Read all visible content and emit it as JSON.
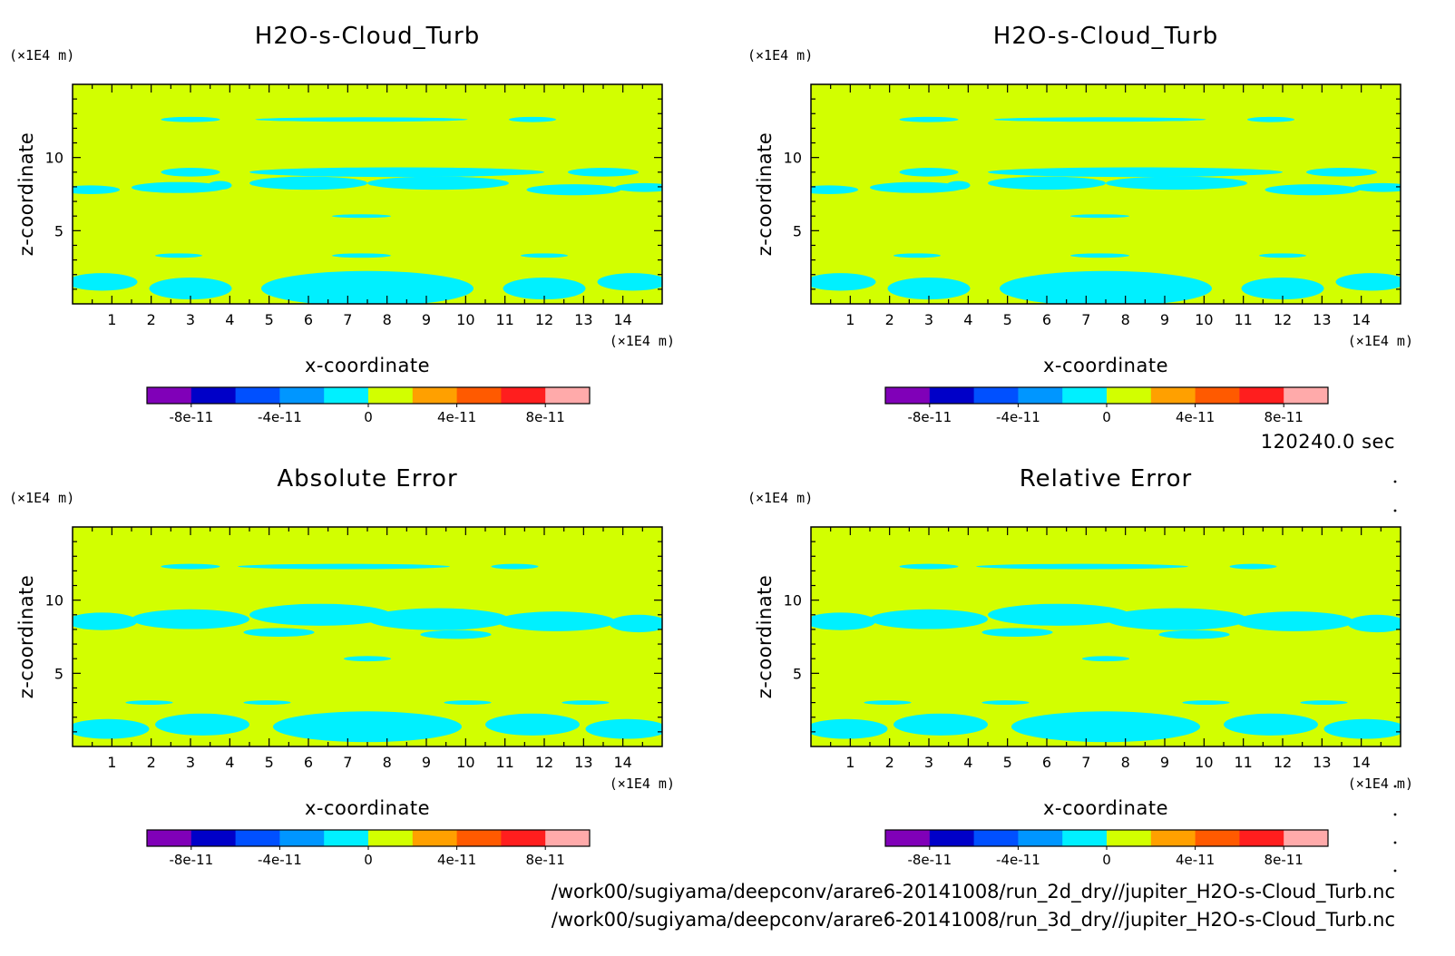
{
  "chart_data": [
    {
      "type": "heatmap",
      "title": "H2O-s-Cloud_Turb",
      "xlabel": "x-coordinate",
      "ylabel": "z-coordinate",
      "x_unit": "(×1E4 m)",
      "y_unit": "(×1E4 m)",
      "xlim": [
        0,
        15
      ],
      "ylim": [
        0,
        15
      ],
      "x_ticks": [
        "1",
        "2",
        "3",
        "4",
        "5",
        "6",
        "7",
        "8",
        "9",
        "10",
        "11",
        "12",
        "13",
        "14"
      ],
      "y_ticks": [
        "5",
        "10"
      ],
      "background_color": "#d2ff00",
      "contour_color": "#00f0ff",
      "colorbar": {
        "levels": [
          "-8e-11",
          "-4e-11",
          "0",
          "4e-11",
          "8e-11"
        ],
        "colors": [
          "#8000b8",
          "#0000c8",
          "#0050ff",
          "#0096ff",
          "#00f0ff",
          "#d2ff00",
          "#ffa000",
          "#ff5a00",
          "#ff1e1e",
          "#ffaaaa"
        ]
      }
    },
    {
      "type": "heatmap",
      "title": "H2O-s-Cloud_Turb",
      "xlabel": "x-coordinate",
      "ylabel": "z-coordinate",
      "x_unit": "(×1E4 m)",
      "y_unit": "(×1E4 m)",
      "xlim": [
        0,
        15
      ],
      "ylim": [
        0,
        15
      ],
      "x_ticks": [
        "1",
        "2",
        "3",
        "4",
        "5",
        "6",
        "7",
        "8",
        "9",
        "10",
        "11",
        "12",
        "13",
        "14"
      ],
      "y_ticks": [
        "5",
        "10"
      ],
      "background_color": "#d2ff00",
      "contour_color": "#00f0ff",
      "colorbar": {
        "levels": [
          "-8e-11",
          "-4e-11",
          "0",
          "4e-11",
          "8e-11"
        ],
        "colors": [
          "#8000b8",
          "#0000c8",
          "#0050ff",
          "#0096ff",
          "#00f0ff",
          "#d2ff00",
          "#ffa000",
          "#ff5a00",
          "#ff1e1e",
          "#ffaaaa"
        ]
      }
    },
    {
      "type": "heatmap",
      "title": "Absolute Error",
      "xlabel": "x-coordinate",
      "ylabel": "z-coordinate",
      "x_unit": "(×1E4 m)",
      "y_unit": "(×1E4 m)",
      "xlim": [
        0,
        15
      ],
      "ylim": [
        0,
        15
      ],
      "x_ticks": [
        "1",
        "2",
        "3",
        "4",
        "5",
        "6",
        "7",
        "8",
        "9",
        "10",
        "11",
        "12",
        "13",
        "14"
      ],
      "y_ticks": [
        "5",
        "10"
      ],
      "background_color": "#d2ff00",
      "contour_color": "#00f0ff",
      "colorbar": {
        "levels": [
          "-8e-11",
          "-4e-11",
          "0",
          "4e-11",
          "8e-11"
        ],
        "colors": [
          "#8000b8",
          "#0000c8",
          "#0050ff",
          "#0096ff",
          "#00f0ff",
          "#d2ff00",
          "#ffa000",
          "#ff5a00",
          "#ff1e1e",
          "#ffaaaa"
        ]
      }
    },
    {
      "type": "heatmap",
      "title": "Relative Error",
      "xlabel": "x-coordinate",
      "ylabel": "z-coordinate",
      "x_unit": "(×1E4 m)",
      "y_unit": "(×1E4 m)",
      "xlim": [
        0,
        15
      ],
      "ylim": [
        0,
        15
      ],
      "x_ticks": [
        "1",
        "2",
        "3",
        "4",
        "5",
        "6",
        "7",
        "8",
        "9",
        "10",
        "11",
        "12",
        "13",
        "14"
      ],
      "y_ticks": [
        "5",
        "10"
      ],
      "background_color": "#d2ff00",
      "contour_color": "#00f0ff",
      "colorbar": {
        "levels": [
          "-8e-11",
          "-4e-11",
          "0",
          "4e-11",
          "8e-11"
        ],
        "colors": [
          "#8000b8",
          "#0000c8",
          "#0050ff",
          "#0096ff",
          "#00f0ff",
          "#d2ff00",
          "#ffa000",
          "#ff5a00",
          "#ff1e1e",
          "#ffaaaa"
        ]
      }
    }
  ],
  "time_label": "120240.0 sec",
  "footer": {
    "path1": "/work00/sugiyama/deepconv/arare6-20141008/run_2d_dry//jupiter_H2O-s-Cloud_Turb.nc",
    "path2": "/work00/sugiyama/deepconv/arare6-20141008/run_3d_dry//jupiter_H2O-s-Cloud_Turb.nc"
  }
}
